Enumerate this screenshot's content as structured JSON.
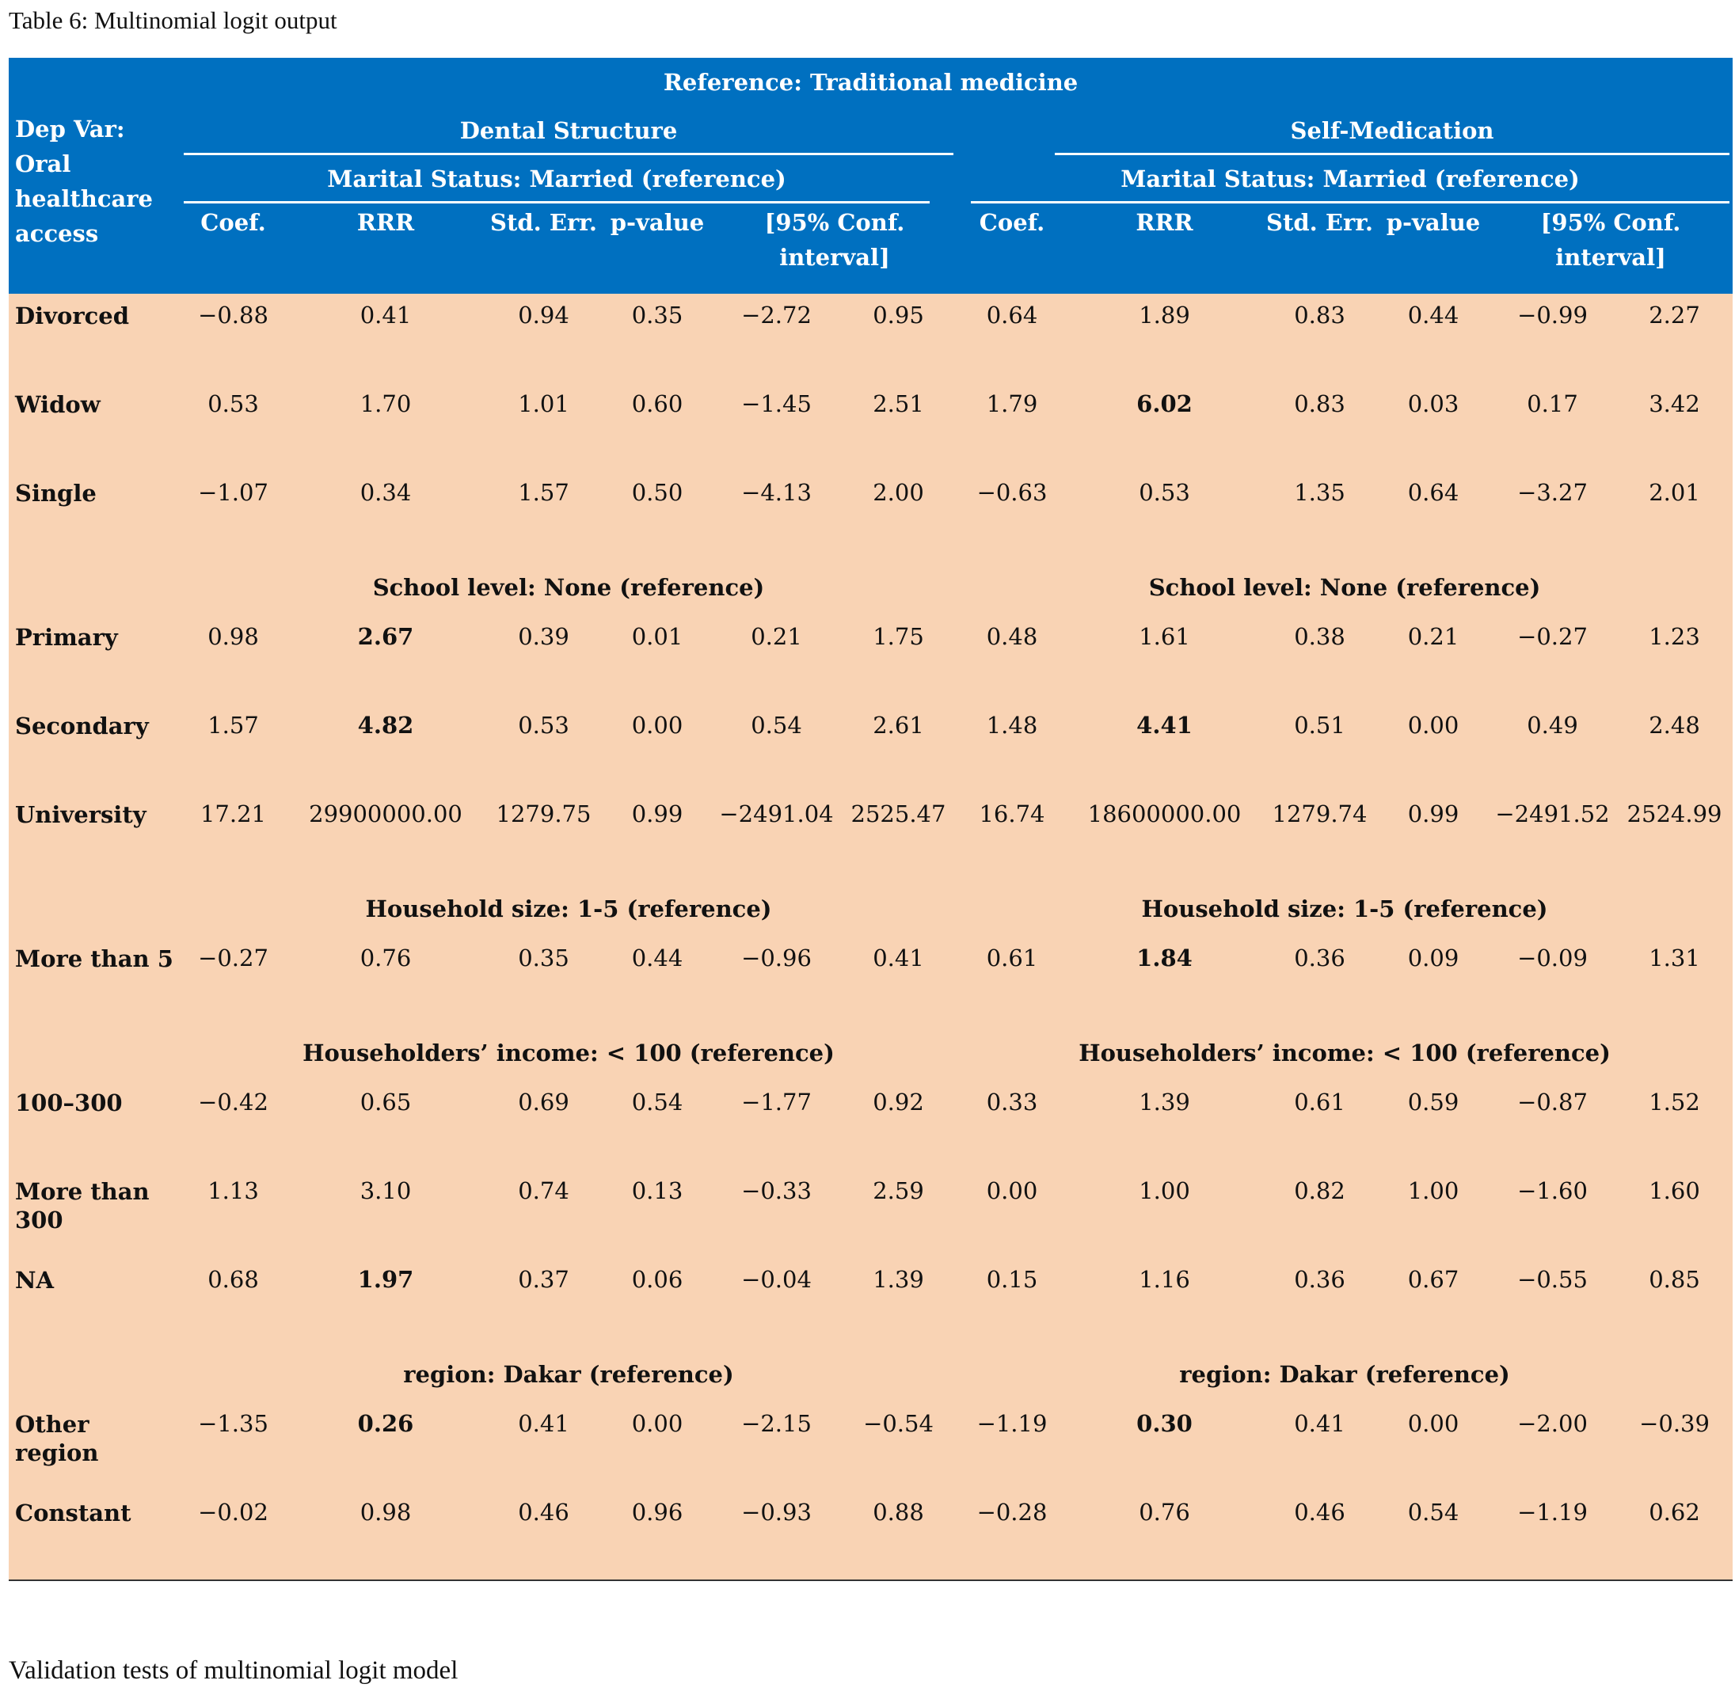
{
  "caption": "Table 6: Multinomial logit output",
  "reference": "Reference: Traditional medicine",
  "dep_var": "Dep Var: Oral healthcare access",
  "groups": [
    "Dental Structure",
    "Self-Medication"
  ],
  "columns": [
    "Coef.",
    "RRR",
    "Std. Err.",
    "p-value",
    "[95% Conf. interval]"
  ],
  "sections": [
    {
      "title": "Marital Status: Married (reference)",
      "rows": [
        {
          "label": "Divorced",
          "values": [
            "−0.88",
            "0.41",
            "0.94",
            "0.35",
            "−2.72",
            "0.95",
            "0.64",
            "1.89",
            "0.83",
            "0.44",
            "−0.99",
            "2.27"
          ],
          "bold": []
        },
        {
          "label": "Widow",
          "values": [
            "0.53",
            "1.70",
            "1.01",
            "0.60",
            "−1.45",
            "2.51",
            "1.79",
            "6.02",
            "0.83",
            "0.03",
            "0.17",
            "3.42"
          ],
          "bold": [
            7
          ]
        },
        {
          "label": "Single",
          "values": [
            "−1.07",
            "0.34",
            "1.57",
            "0.50",
            "−4.13",
            "2.00",
            "−0.63",
            "0.53",
            "1.35",
            "0.64",
            "−3.27",
            "2.01"
          ],
          "bold": []
        }
      ]
    },
    {
      "title": "School level: None (reference)",
      "rows": [
        {
          "label": "Primary",
          "values": [
            "0.98",
            "2.67",
            "0.39",
            "0.01",
            "0.21",
            "1.75",
            "0.48",
            "1.61",
            "0.38",
            "0.21",
            "−0.27",
            "1.23"
          ],
          "bold": [
            1
          ]
        },
        {
          "label": "Secondary",
          "values": [
            "1.57",
            "4.82",
            "0.53",
            "0.00",
            "0.54",
            "2.61",
            "1.48",
            "4.41",
            "0.51",
            "0.00",
            "0.49",
            "2.48"
          ],
          "bold": [
            1,
            7
          ]
        },
        {
          "label": "University",
          "values": [
            "17.21",
            "29900000.00",
            "1279.75",
            "0.99",
            "−2491.04",
            "2525.47",
            "16.74",
            "18600000.00",
            "1279.74",
            "0.99",
            "−2491.52",
            "2524.99"
          ],
          "bold": []
        }
      ]
    },
    {
      "title": "Household size: 1-5 (reference)",
      "rows": [
        {
          "label": "More than 5",
          "values": [
            "−0.27",
            "0.76",
            "0.35",
            "0.44",
            "−0.96",
            "0.41",
            "0.61",
            "1.84",
            "0.36",
            "0.09",
            "−0.09",
            "1.31"
          ],
          "bold": [
            7
          ]
        }
      ]
    },
    {
      "title": "Householders’ income: < 100 (reference)",
      "rows": [
        {
          "label": "100–300",
          "values": [
            "−0.42",
            "0.65",
            "0.69",
            "0.54",
            "−1.77",
            "0.92",
            "0.33",
            "1.39",
            "0.61",
            "0.59",
            "−0.87",
            "1.52"
          ],
          "bold": []
        },
        {
          "label": "More than 300",
          "values": [
            "1.13",
            "3.10",
            "0.74",
            "0.13",
            "−0.33",
            "2.59",
            "0.00",
            "1.00",
            "0.82",
            "1.00",
            "−1.60",
            "1.60"
          ],
          "bold": []
        },
        {
          "label": "NA",
          "values": [
            "0.68",
            "1.97",
            "0.37",
            "0.06",
            "−0.04",
            "1.39",
            "0.15",
            "1.16",
            "0.36",
            "0.67",
            "−0.55",
            "0.85"
          ],
          "bold": [
            1
          ]
        }
      ]
    },
    {
      "title": "region: Dakar (reference)",
      "rows": [
        {
          "label": "Other region",
          "values": [
            "−1.35",
            "0.26",
            "0.41",
            "0.00",
            "−2.15",
            "−0.54",
            "−1.19",
            "0.30",
            "0.41",
            "0.00",
            "−2.00",
            "−0.39"
          ],
          "bold": [
            1,
            7
          ]
        },
        {
          "label": "Constant",
          "values": [
            "−0.02",
            "0.98",
            "0.46",
            "0.96",
            "−0.93",
            "0.88",
            "−0.28",
            "0.76",
            "0.46",
            "0.54",
            "−1.19",
            "0.62"
          ],
          "bold": []
        }
      ]
    }
  ],
  "footer": "Validation tests of multinomial logit model"
}
